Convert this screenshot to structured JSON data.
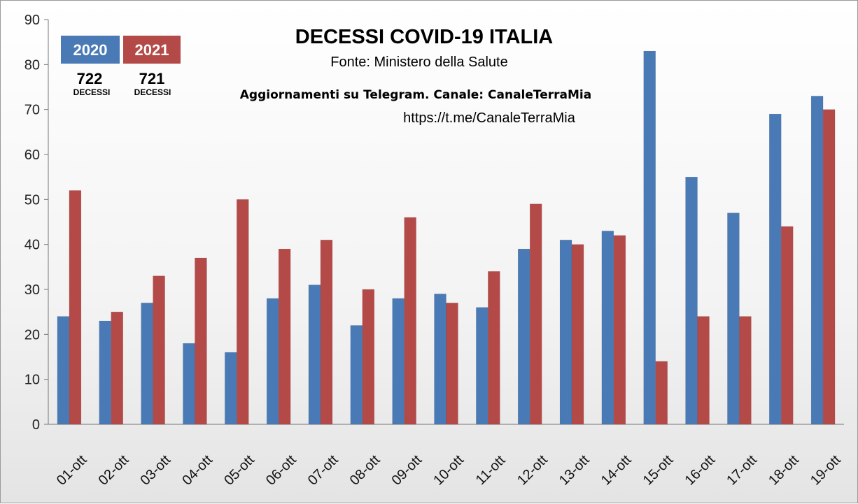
{
  "chart_data": {
    "type": "bar",
    "title": "DECESSI COVID-19 ITALIA",
    "subtitle": "Fonte: Ministero della Salute",
    "annotations": {
      "telegram": "Aggiornamenti su Telegram. Canale:  CanaleTerraMia",
      "url": "https://t.me/CanaleTerraMia"
    },
    "legend": [
      {
        "label": "2020",
        "total": "722",
        "unit": "DECESSI",
        "color": "#4a7ab5"
      },
      {
        "label": "2021",
        "total": "721",
        "unit": "DECESSI",
        "color": "#b44a48"
      }
    ],
    "categories": [
      "01-ott",
      "02-ott",
      "03-ott",
      "04-ott",
      "05-ott",
      "06-ott",
      "07-ott",
      "08-ott",
      "09-ott",
      "10-ott",
      "11-ott",
      "12-ott",
      "13-ott",
      "14-ott",
      "15-ott",
      "16-ott",
      "17-ott",
      "18-ott",
      "19-ott"
    ],
    "series": [
      {
        "name": "2020",
        "color": "#4a7ab5",
        "values": [
          24,
          23,
          27,
          18,
          16,
          28,
          31,
          22,
          28,
          29,
          26,
          39,
          41,
          43,
          83,
          55,
          47,
          69,
          73
        ]
      },
      {
        "name": "2021",
        "color": "#b44a48",
        "values": [
          52,
          25,
          33,
          37,
          50,
          39,
          41,
          30,
          46,
          27,
          34,
          49,
          40,
          42,
          14,
          24,
          24,
          44,
          70
        ]
      }
    ],
    "ylim": [
      0,
      90
    ],
    "yticks": [
      0,
      10,
      20,
      30,
      40,
      50,
      60,
      70,
      80,
      90
    ],
    "xlabel": "",
    "ylabel": "",
    "grid": false,
    "legend_position": "top-left"
  }
}
